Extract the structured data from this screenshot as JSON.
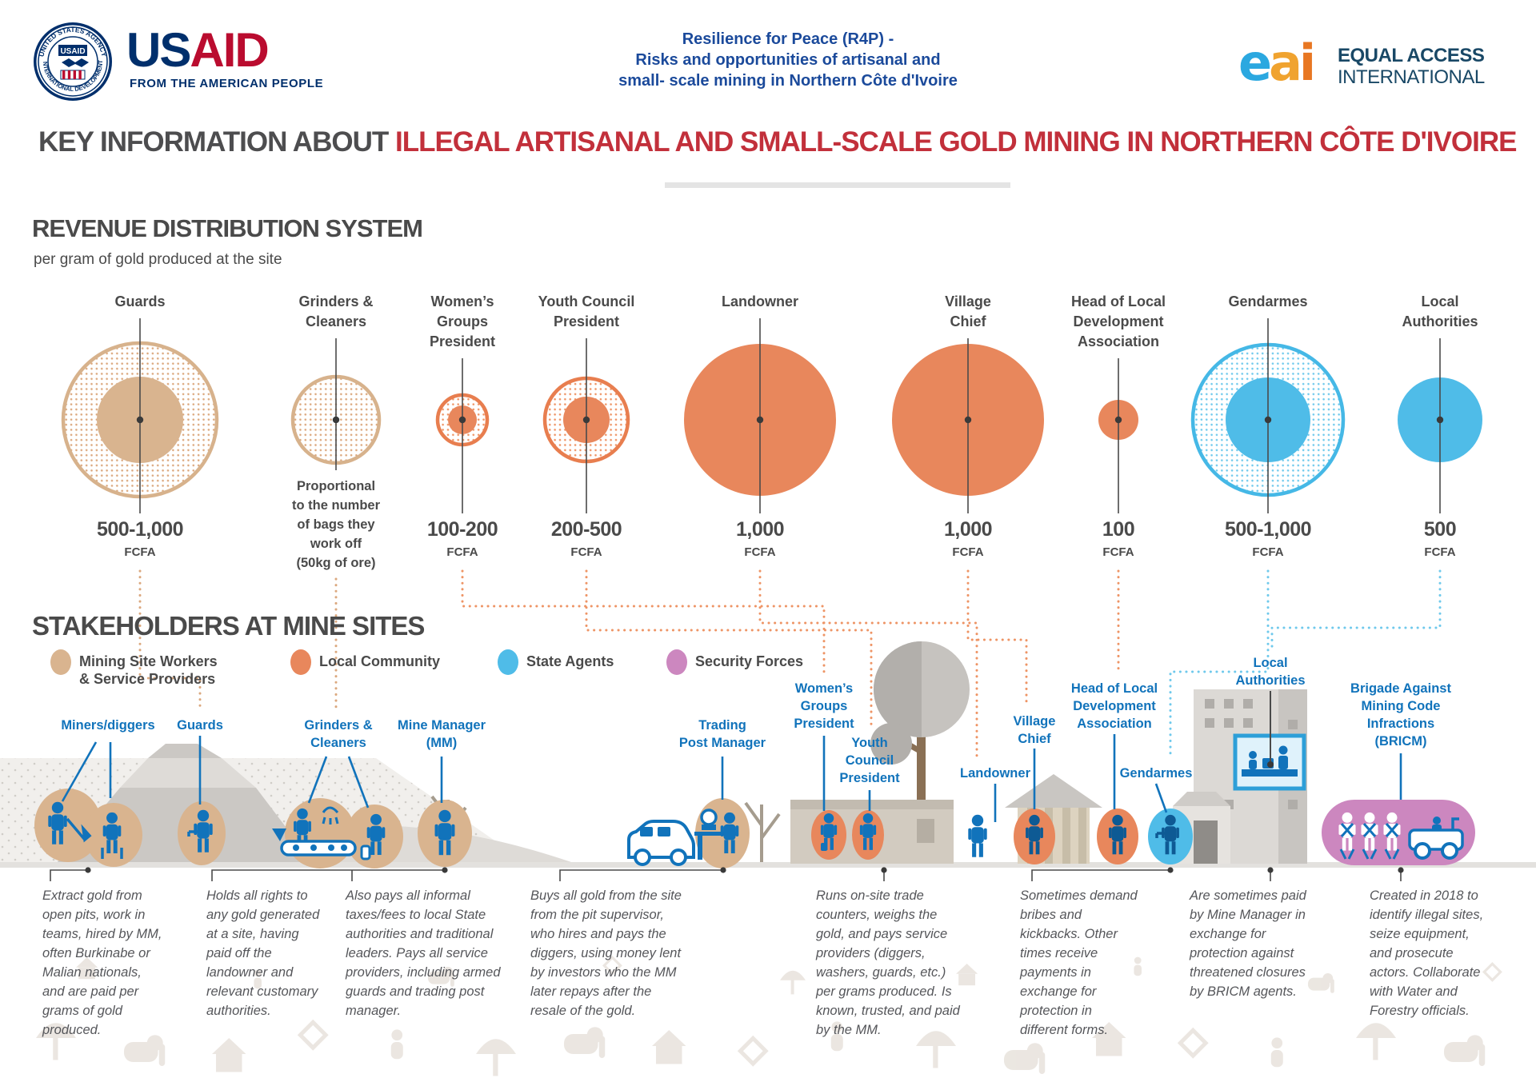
{
  "header": {
    "usaid": {
      "wordmark_us": "US",
      "wordmark_aid": "AID",
      "tagline": "FROM THE AMERICAN PEOPLE",
      "seal_label": "USAID",
      "seal_top": "UNITED STATES AGENCY",
      "seal_bottom": "INTERNATIONAL DEVELOPMENT"
    },
    "project_title": "Resilience for Peace (R4P) -\nRisks and opportunities of artisanal and\nsmall- scale mining in Northern Côte d'Ivoire",
    "eai": {
      "letters": [
        "e",
        "a",
        "i"
      ],
      "name_line1": "EQUAL ACCESS",
      "name_line2": "INTERNATIONAL"
    }
  },
  "main_title": {
    "prefix": "KEY INFORMATION ABOUT ",
    "highlight": "ILLEGAL ARTISANAL AND SMALL-SCALE GOLD MINING IN NORTHERN CÔTE D'IVOIRE"
  },
  "colors": {
    "mining_tan": "#D9B48F",
    "mining_ring": "#D7B28C",
    "mining_dots": "#DBA87E",
    "community_orange": "#E8875C",
    "community_ring": "#E87E4F",
    "community_dots": "#EE9465",
    "state_blue": "#4FBCE8",
    "state_ring": "#45B8E6",
    "state_dots": "#6FC9EC",
    "security_pink": "#CC87BF",
    "label_blue": "#1173BB",
    "heading_gray": "#4A4A4A",
    "title_red": "#C2303B",
    "usaid_navy": "#002F6C",
    "usaid_red": "#BA0C2F",
    "header_blue": "#1B4A9B",
    "eai_navy": "#194866",
    "eai_e": "#2BA8E0",
    "eai_a": "#F0A32F",
    "eai_i": "#E87722"
  },
  "chart_data": {
    "type": "bubble",
    "title": "REVENUE DISTRIBUTION SYSTEM",
    "subtitle": "per gram of gold produced at the site",
    "unit": "FCFA",
    "value_encoding": "circle size = FCFA amount; dotted ring = range between min and max, solid circle = fixed amount",
    "items": [
      {
        "label": "Guards",
        "value_label": "500-1,000",
        "value_min": 500,
        "value_max": 1000,
        "group": "mining",
        "variant": "range_ring"
      },
      {
        "label": "Grinders &\nCleaners",
        "value_label": "Proportional\nto the number\nof bags they\nwork off\n(50kg of ore)",
        "value_min": null,
        "value_max": null,
        "group": "mining",
        "variant": "proportional_ring"
      },
      {
        "label": "Women’s\nGroups\nPresident",
        "value_label": "100-200",
        "value_min": 100,
        "value_max": 200,
        "group": "community",
        "variant": "range_ring"
      },
      {
        "label": "Youth Council\nPresident",
        "value_label": "200-500",
        "value_min": 200,
        "value_max": 500,
        "group": "community",
        "variant": "range_ring"
      },
      {
        "label": "Landowner",
        "value_label": "1,000",
        "value_min": 1000,
        "value_max": 1000,
        "group": "community",
        "variant": "solid"
      },
      {
        "label": "Village\nChief",
        "value_label": "1,000",
        "value_min": 1000,
        "value_max": 1000,
        "group": "community",
        "variant": "solid"
      },
      {
        "label": "Head of Local\nDevelopment\nAssociation",
        "value_label": "100",
        "value_min": 100,
        "value_max": 100,
        "group": "community",
        "variant": "solid"
      },
      {
        "label": "Gendarmes",
        "value_label": "500-1,000",
        "value_min": 500,
        "value_max": 1000,
        "group": "state",
        "variant": "range_ring"
      },
      {
        "label": "Local\nAuthorities",
        "value_label": "500",
        "value_min": 500,
        "value_max": 500,
        "group": "state",
        "variant": "solid"
      }
    ]
  },
  "stakeholders_section": {
    "title": "STAKEHOLDERS AT MINE SITES",
    "legend": [
      {
        "label": "Mining Site Workers\n& Service Providers",
        "color": "mining_tan"
      },
      {
        "label": "Local Community",
        "color": "community_orange"
      },
      {
        "label": "State Agents",
        "color": "state_blue"
      },
      {
        "label": "Security Forces",
        "color": "security_pink"
      }
    ],
    "scene_labels": [
      "Miners/diggers",
      "Guards",
      "Grinders &\nCleaners",
      "Mine Manager\n(MM)",
      "Trading\nPost Manager",
      "Women’s\nGroups\nPresident",
      "Youth\nCouncil\nPresident",
      "Landowner",
      "Village\nChief",
      "Head of Local\nDevelopment\nAssociation",
      "Gendarmes",
      "Local\nAuthorities",
      "Brigade Against\nMining Code\nInfractions\n(BRICM)"
    ],
    "descriptions": [
      "Extract gold from open pits, work in teams, hired by MM, often Burkinabe or Malian nationals, and are paid per grams of gold produced.",
      "Holds all rights to any gold generated at a site, having paid off the landowner and relevant customary authorities.",
      "Also pays all informal taxes/fees to local State authorities and traditional leaders. Pays all service providers, including armed guards and trading post manager.",
      "Buys all gold from the site from the pit supervisor, who hires and pays the diggers, using money lent by investors who the MM later repays after the resale of the gold.",
      "Runs on-site trade counters, weighs the gold, and pays service providers (diggers, washers, guards, etc.) per grams produced. Is known, trusted, and paid by the MM.",
      "Sometimes demand bribes and kickbacks. Other times receive payments in exchange for protection in different forms.",
      "Are sometimes paid by Mine Manager in exchange for protection against threatened closures by BRICM agents.",
      "Created in 2018 to identify illegal sites, seize equipment, and prosecute actors. Collaborate with Water and Forestry officials."
    ]
  }
}
